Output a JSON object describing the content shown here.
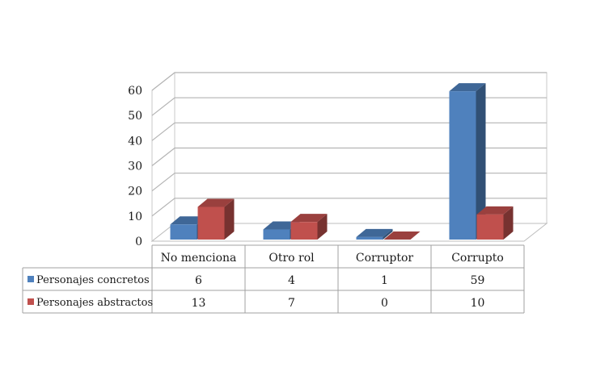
{
  "chart_data": {
    "type": "bar",
    "title": "",
    "xlabel": "",
    "ylabel": "",
    "ylim": [
      0,
      60
    ],
    "yticks": [
      0,
      10,
      20,
      30,
      40,
      50,
      60
    ],
    "grid": true,
    "three_d": true,
    "legend_placement": "data-table-left",
    "categories": [
      "No menciona",
      "Otro rol",
      "Corruptor",
      "Corrupto"
    ],
    "series": [
      {
        "name": "Personajes concretos",
        "color": "#4f81bd",
        "values": [
          6,
          4,
          1,
          59
        ]
      },
      {
        "name": "Personajes abstractos",
        "color": "#c0504d",
        "values": [
          13,
          7,
          0,
          10
        ]
      }
    ],
    "data_table": {
      "rows": [
        [
          "6",
          "4",
          "1",
          "59"
        ],
        [
          "13",
          "7",
          "0",
          "10"
        ]
      ]
    }
  }
}
